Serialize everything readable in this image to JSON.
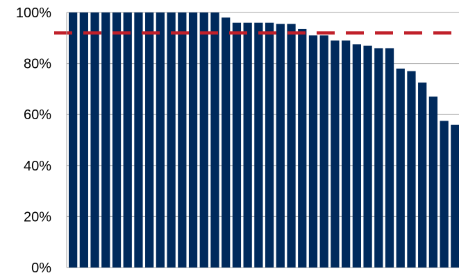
{
  "chart_data": {
    "type": "bar",
    "title": "",
    "xlabel": "",
    "ylabel": "",
    "ylim": [
      0,
      100
    ],
    "yticks": [
      {
        "value": 0,
        "label": "0%"
      },
      {
        "value": 20,
        "label": "20%"
      },
      {
        "value": 40,
        "label": "40%"
      },
      {
        "value": 60,
        "label": "60%"
      },
      {
        "value": 80,
        "label": "80%"
      },
      {
        "value": 100,
        "label": "100%"
      }
    ],
    "grid": true,
    "values": [
      100,
      100,
      100,
      100,
      100,
      100,
      100,
      100,
      100,
      100,
      100,
      100,
      100,
      100,
      98,
      96,
      96,
      96,
      96,
      95.5,
      95.5,
      93.5,
      91,
      91,
      89,
      89,
      87.5,
      87,
      86,
      86,
      78,
      77,
      72.5,
      67,
      57.5,
      56
    ],
    "reference_line": {
      "value": 92,
      "style": "dashed"
    },
    "colors": {
      "bar": "#002a5c",
      "reference_line": "#c0202a",
      "grid": "#a6a6a6",
      "axis": "#a6a6a6",
      "tick_text": "#000000"
    }
  }
}
